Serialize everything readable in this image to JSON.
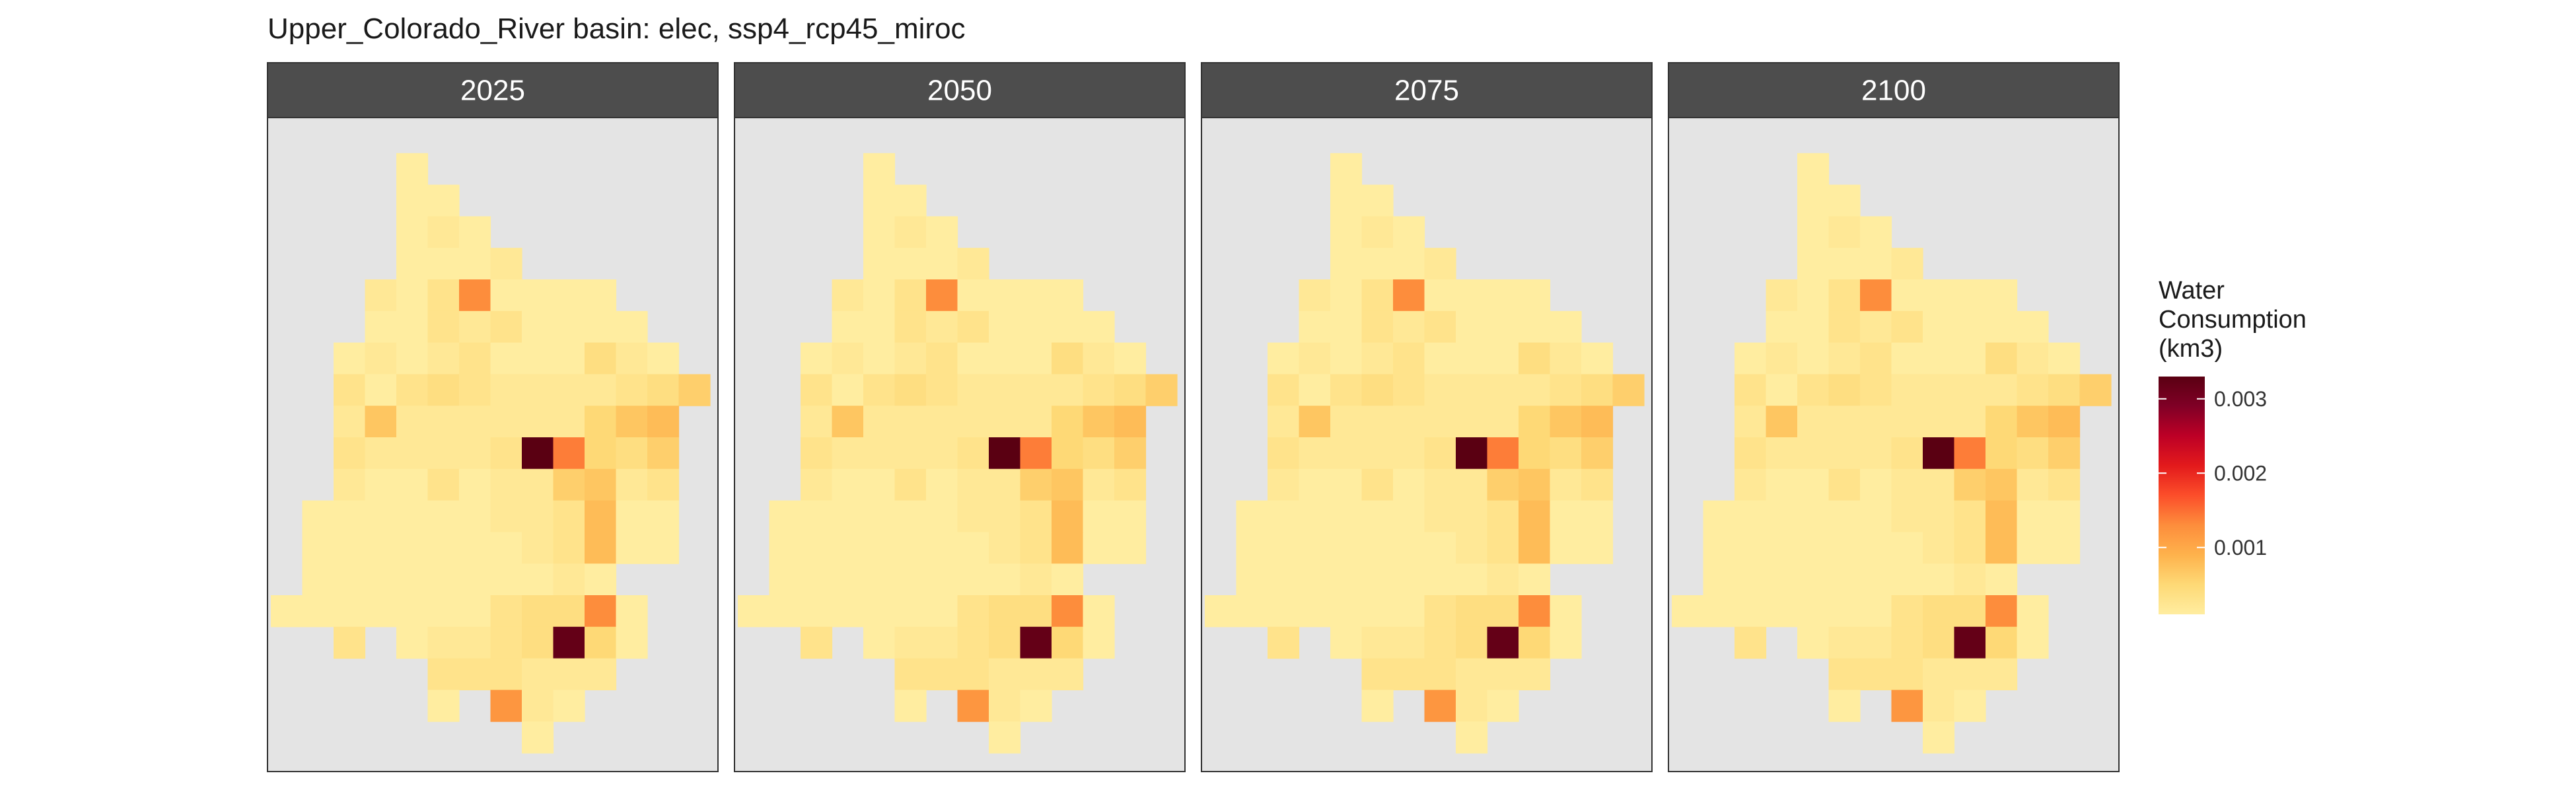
{
  "chart_data": {
    "type": "heatmap",
    "title": "Upper_Colorado_River basin: elec, ssp4_rcp45_miroc",
    "panels": [
      "2025",
      "2050",
      "2075",
      "2100"
    ],
    "legend": {
      "title_lines": [
        "Water",
        "Consumption",
        "(km3)"
      ],
      "ticks": [
        0.001,
        0.002,
        0.003
      ],
      "tick_labels": [
        "0.001",
        "0.002",
        "0.003"
      ],
      "range": [
        0.0001,
        0.0033
      ],
      "placement": "right",
      "colors": [
        "#FFEDA0",
        "#FED976",
        "#FEB24C",
        "#FD8D3C",
        "#FC4E2A",
        "#E31A1C",
        "#BD0026",
        "#800026",
        "#5A0012"
      ]
    },
    "panel_background": "#E4E4E4",
    "strip_background": "#4D4D4D",
    "strip_text_color": "#FFFFFF",
    "grid": {
      "columns": 14,
      "rows": 21,
      "cells": [
        [
          1,
          4,
          0.0001
        ],
        [
          2,
          4,
          0.0001
        ],
        [
          2,
          5,
          0.0001
        ],
        [
          3,
          4,
          0.0001
        ],
        [
          3,
          5,
          0.0002
        ],
        [
          3,
          6,
          0.0001
        ],
        [
          4,
          4,
          0.0001
        ],
        [
          4,
          5,
          0.0001
        ],
        [
          4,
          6,
          0.0001
        ],
        [
          4,
          7,
          0.0002
        ],
        [
          5,
          3,
          0.0002
        ],
        [
          5,
          4,
          0.0001
        ],
        [
          5,
          5,
          0.0003
        ],
        [
          5,
          6,
          0.0013
        ],
        [
          5,
          7,
          0.0001
        ],
        [
          5,
          8,
          0.0001
        ],
        [
          5,
          9,
          0.0001
        ],
        [
          5,
          10,
          0.0001
        ],
        [
          6,
          3,
          0.0001
        ],
        [
          6,
          4,
          0.0001
        ],
        [
          6,
          5,
          0.0003
        ],
        [
          6,
          6,
          0.0002
        ],
        [
          6,
          7,
          0.0003
        ],
        [
          6,
          8,
          0.0001
        ],
        [
          6,
          9,
          0.0001
        ],
        [
          6,
          10,
          0.0001
        ],
        [
          6,
          11,
          0.0001
        ],
        [
          7,
          2,
          0.0001
        ],
        [
          7,
          3,
          0.0002
        ],
        [
          7,
          4,
          0.0001
        ],
        [
          7,
          5,
          0.0002
        ],
        [
          7,
          6,
          0.0003
        ],
        [
          7,
          7,
          0.0001
        ],
        [
          7,
          8,
          0.0001
        ],
        [
          7,
          9,
          0.0001
        ],
        [
          7,
          10,
          0.0004
        ],
        [
          7,
          11,
          0.0002
        ],
        [
          7,
          12,
          0.0001
        ],
        [
          8,
          2,
          0.0003
        ],
        [
          8,
          3,
          0.0001
        ],
        [
          8,
          4,
          0.0003
        ],
        [
          8,
          5,
          0.0004
        ],
        [
          8,
          6,
          0.0003
        ],
        [
          8,
          7,
          0.0002
        ],
        [
          8,
          8,
          0.0002
        ],
        [
          8,
          9,
          0.0002
        ],
        [
          8,
          10,
          0.0002
        ],
        [
          8,
          11,
          0.0003
        ],
        [
          8,
          12,
          0.0004
        ],
        [
          8,
          13,
          0.0006
        ],
        [
          9,
          2,
          0.0002
        ],
        [
          9,
          3,
          0.0007
        ],
        [
          9,
          4,
          0.0002
        ],
        [
          9,
          5,
          0.0002
        ],
        [
          9,
          6,
          0.0002
        ],
        [
          9,
          7,
          0.0002
        ],
        [
          9,
          8,
          0.0002
        ],
        [
          9,
          9,
          0.0002
        ],
        [
          9,
          10,
          0.0005
        ],
        [
          9,
          11,
          0.0007
        ],
        [
          9,
          12,
          0.0008
        ],
        [
          10,
          2,
          0.0003
        ],
        [
          10,
          3,
          0.0002
        ],
        [
          10,
          4,
          0.0002
        ],
        [
          10,
          5,
          0.0002
        ],
        [
          10,
          6,
          0.0002
        ],
        [
          10,
          7,
          0.0003
        ],
        [
          10,
          8,
          0.0033
        ],
        [
          10,
          9,
          0.0014
        ],
        [
          10,
          10,
          0.0005
        ],
        [
          10,
          11,
          0.0004
        ],
        [
          10,
          12,
          0.0006
        ],
        [
          11,
          2,
          0.0002
        ],
        [
          11,
          3,
          0.0001
        ],
        [
          11,
          4,
          0.0001
        ],
        [
          11,
          5,
          0.0003
        ],
        [
          11,
          6,
          0.0001
        ],
        [
          11,
          7,
          0.0002
        ],
        [
          11,
          8,
          0.0002
        ],
        [
          11,
          9,
          0.0006
        ],
        [
          11,
          10,
          0.0007
        ],
        [
          11,
          11,
          0.0002
        ],
        [
          11,
          12,
          0.0003
        ],
        [
          12,
          1,
          0.0001
        ],
        [
          12,
          2,
          0.0001
        ],
        [
          12,
          3,
          0.0001
        ],
        [
          12,
          4,
          0.0001
        ],
        [
          12,
          5,
          0.0001
        ],
        [
          12,
          6,
          0.0001
        ],
        [
          12,
          7,
          0.0002
        ],
        [
          12,
          8,
          0.0002
        ],
        [
          12,
          9,
          0.0003
        ],
        [
          12,
          10,
          0.0008
        ],
        [
          12,
          11,
          0.0001
        ],
        [
          12,
          12,
          0.0001
        ],
        [
          13,
          1,
          0.0001
        ],
        [
          13,
          2,
          0.0001
        ],
        [
          13,
          3,
          0.0001
        ],
        [
          13,
          4,
          0.0001
        ],
        [
          13,
          5,
          0.0001
        ],
        [
          13,
          6,
          0.0001
        ],
        [
          13,
          7,
          0.0001
        ],
        [
          13,
          8,
          0.0002
        ],
        [
          13,
          9,
          0.0003
        ],
        [
          13,
          10,
          0.0008
        ],
        [
          13,
          11,
          0.0001
        ],
        [
          13,
          12,
          0.0001
        ],
        [
          14,
          1,
          0.0001
        ],
        [
          14,
          2,
          0.0001
        ],
        [
          14,
          3,
          0.0001
        ],
        [
          14,
          4,
          0.0001
        ],
        [
          14,
          5,
          0.0001
        ],
        [
          14,
          6,
          0.0001
        ],
        [
          14,
          7,
          0.0001
        ],
        [
          14,
          8,
          0.0001
        ],
        [
          14,
          9,
          0.0002
        ],
        [
          14,
          10,
          0.0001
        ],
        [
          15,
          0,
          0.0001
        ],
        [
          15,
          1,
          0.0001
        ],
        [
          15,
          2,
          0.0001
        ],
        [
          15,
          3,
          0.0001
        ],
        [
          15,
          4,
          0.0001
        ],
        [
          15,
          5,
          0.0001
        ],
        [
          15,
          6,
          0.0001
        ],
        [
          15,
          7,
          0.0003
        ],
        [
          15,
          8,
          0.0004
        ],
        [
          15,
          9,
          0.0004
        ],
        [
          15,
          10,
          0.0013
        ],
        [
          15,
          11,
          0.0001
        ],
        [
          16,
          2,
          0.0003
        ],
        [
          16,
          4,
          0.0001
        ],
        [
          16,
          5,
          0.0002
        ],
        [
          16,
          6,
          0.0002
        ],
        [
          16,
          7,
          0.0003
        ],
        [
          16,
          8,
          0.0004
        ],
        [
          16,
          9,
          0.0032
        ],
        [
          16,
          10,
          0.0005
        ],
        [
          16,
          11,
          0.0001
        ],
        [
          17,
          5,
          0.0003
        ],
        [
          17,
          6,
          0.0003
        ],
        [
          17,
          7,
          0.0003
        ],
        [
          17,
          8,
          0.0002
        ],
        [
          17,
          9,
          0.0002
        ],
        [
          17,
          10,
          0.0002
        ],
        [
          18,
          5,
          0.0001
        ],
        [
          18,
          7,
          0.0012
        ],
        [
          18,
          8,
          0.0002
        ],
        [
          18,
          9,
          0.0001
        ],
        [
          19,
          8,
          0.0001
        ]
      ]
    }
  }
}
